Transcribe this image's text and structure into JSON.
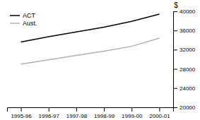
{
  "chart_data": {
    "type": "line",
    "ylabel": "$",
    "categories": [
      "1995-96",
      "1996-97",
      "1997-98",
      "1998-99",
      "1999-00",
      "2000-01"
    ],
    "series": [
      {
        "name": "ACT",
        "color": "#000000",
        "values": [
          33600,
          34700,
          35700,
          36700,
          37900,
          39400
        ]
      },
      {
        "name": "Aust.",
        "color": "#b0b0b0",
        "values": [
          29000,
          29900,
          30800,
          31700,
          32700,
          34400
        ]
      }
    ],
    "ylim": [
      20000,
      40000
    ],
    "yticks": [
      20000,
      24000,
      28000,
      32000,
      36000,
      40000
    ],
    "legend": "upper left",
    "grid": false
  }
}
